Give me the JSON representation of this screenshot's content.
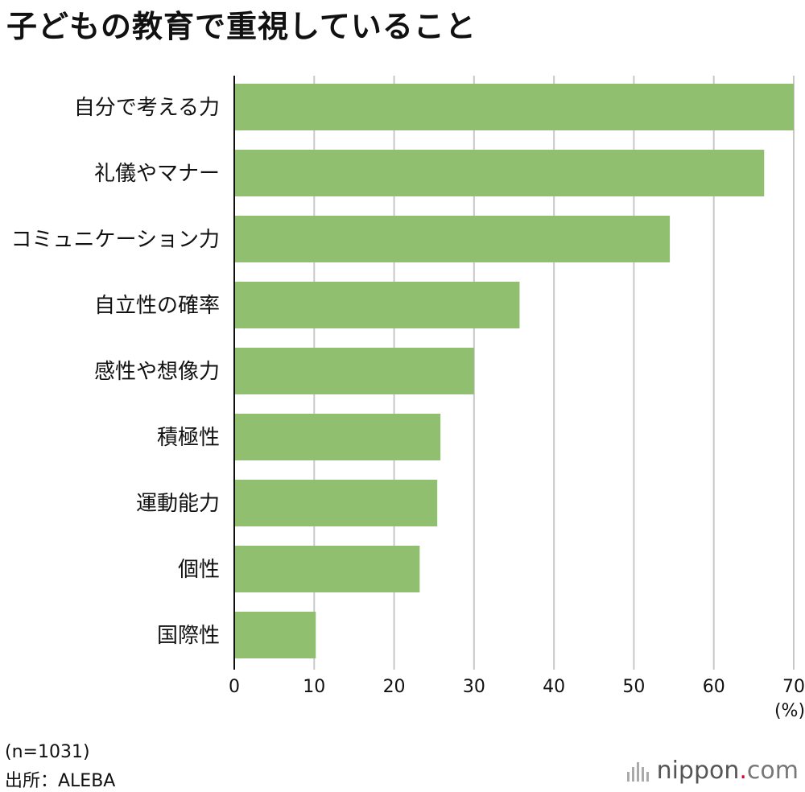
{
  "title": "子どもの教育で重視していること",
  "chart_data": {
    "type": "bar",
    "orientation": "horizontal",
    "categories": [
      "自分で考える力",
      "礼儀やマナー",
      "コミュニケーション力",
      "自立性の確率",
      "感性や想像力",
      "積極性",
      "運動能力",
      "個性",
      "国際性"
    ],
    "values": [
      70.0,
      66.3,
      54.5,
      35.7,
      30.0,
      25.8,
      25.4,
      23.2,
      10.2
    ],
    "xlim": [
      0,
      70
    ],
    "xticks": [
      "0",
      "10",
      "20",
      "30",
      "40",
      "50",
      "60",
      "70"
    ],
    "unit_label": "(%)",
    "grid": true,
    "bar_color": "#8fbf6f"
  },
  "notes": {
    "sample": "(n=1031)",
    "source": "出所：ALEBA"
  },
  "logo": {
    "name": "nippon",
    "dot": ".",
    "suffix": "com"
  }
}
